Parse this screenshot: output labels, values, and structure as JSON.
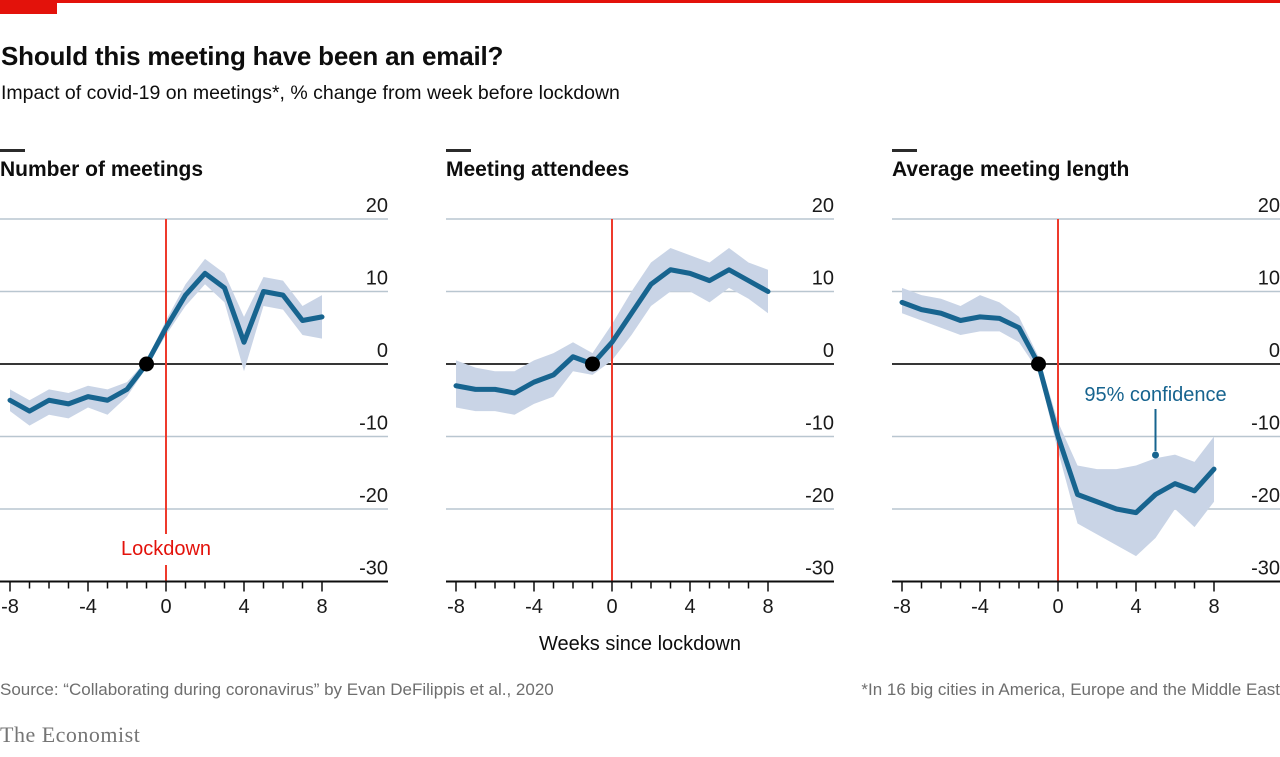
{
  "header": {
    "title": "Should this meeting have been an email?",
    "subtitle": "Impact of covid-19 on meetings*, % change from week before lockdown"
  },
  "axis": {
    "x_label": "Weeks since lockdown"
  },
  "footer": {
    "source": "Source: “Collaborating during coronavirus” by Evan DeFilippis et al., 2020",
    "footnote": "*In 16 big cities in America, Europe and the Middle East",
    "brand": "The Economist"
  },
  "colors": {
    "red": "#e3120b",
    "red_line": "#ee3a2c",
    "line_blue": "#17648f",
    "band_blue": "#c9d4e6",
    "gridline": "#b9c6d0",
    "zero_line": "#1a1a1a",
    "axis_black": "#0d0d0d",
    "dot_black": "#000000"
  },
  "chart_data": [
    {
      "type": "line",
      "title": "Number of meetings",
      "x": [
        -8,
        -7,
        -6,
        -5,
        -4,
        -3,
        -2,
        -1,
        0,
        1,
        2,
        3,
        4,
        5,
        6,
        7,
        8
      ],
      "series": [
        {
          "name": "% change",
          "values": [
            -5,
            -6.5,
            -5,
            -5.5,
            -4.5,
            -5,
            -3.5,
            0,
            5,
            9.5,
            12.5,
            10.5,
            3,
            10,
            9.5,
            6,
            6.5
          ]
        },
        {
          "name": "95% CI upper",
          "values": [
            -3.5,
            -5,
            -3.5,
            -4,
            -3,
            -3.5,
            -2.5,
            0.5,
            6,
            11,
            14.5,
            12.5,
            6.5,
            12,
            11.5,
            8,
            9.5
          ]
        },
        {
          "name": "95% CI lower",
          "values": [
            -6.5,
            -8.5,
            -7,
            -7.5,
            -6,
            -7,
            -4.5,
            -0.5,
            4,
            8,
            11,
            8.5,
            -1,
            8,
            7.5,
            4,
            3.5
          ]
        }
      ],
      "ylim": [
        -30,
        20
      ],
      "yticks": [
        20,
        10,
        0,
        -10,
        -20,
        -30
      ],
      "xticks_labeled": [
        -8,
        -4,
        0,
        4,
        8
      ],
      "grid": true,
      "reference_point": {
        "week": -1,
        "value": 0
      },
      "vline": {
        "week": 0,
        "label": "Lockdown"
      },
      "annotation": null
    },
    {
      "type": "line",
      "title": "Meeting attendees",
      "x": [
        -8,
        -7,
        -6,
        -5,
        -4,
        -3,
        -2,
        -1,
        0,
        1,
        2,
        3,
        4,
        5,
        6,
        7,
        8
      ],
      "series": [
        {
          "name": "% change",
          "values": [
            -3,
            -3.5,
            -3.5,
            -4,
            -2.5,
            -1.5,
            1,
            0,
            3,
            7,
            11,
            13,
            12.5,
            11.5,
            13,
            11.5,
            10
          ]
        },
        {
          "name": "95% CI upper",
          "values": [
            0.5,
            -0.5,
            -1,
            -1,
            0.5,
            1.5,
            3,
            1.5,
            5.5,
            10,
            14,
            16,
            15,
            14,
            16,
            14,
            13
          ]
        },
        {
          "name": "95% CI lower",
          "values": [
            -6,
            -6.5,
            -6.5,
            -7,
            -5.5,
            -4.5,
            -1,
            -1.5,
            0.5,
            4,
            8,
            10,
            10,
            8.5,
            10.5,
            9,
            7
          ]
        }
      ],
      "ylim": [
        -30,
        20
      ],
      "yticks": [
        20,
        10,
        0,
        -10,
        -20,
        -30
      ],
      "xticks_labeled": [
        -8,
        -4,
        0,
        4,
        8
      ],
      "grid": true,
      "reference_point": {
        "week": -1,
        "value": 0
      },
      "vline": {
        "week": 0,
        "label": null
      },
      "annotation": null
    },
    {
      "type": "line",
      "title": "Average meeting length",
      "x": [
        -8,
        -7,
        -6,
        -5,
        -4,
        -3,
        -2,
        -1,
        0,
        1,
        2,
        3,
        4,
        5,
        6,
        7,
        8
      ],
      "series": [
        {
          "name": "% change",
          "values": [
            8.5,
            7.5,
            7,
            6,
            6.5,
            6.3,
            5,
            0,
            -10,
            -18,
            -19,
            -20,
            -20.5,
            -18,
            -16.5,
            -17.5,
            -14.5
          ]
        },
        {
          "name": "95% CI upper",
          "values": [
            10.5,
            9.5,
            9,
            8,
            9.5,
            8.5,
            6.5,
            1,
            -8,
            -14,
            -14.5,
            -14.5,
            -14,
            -13,
            -12.5,
            -13.5,
            -10
          ]
        },
        {
          "name": "95% CI lower",
          "values": [
            7,
            6,
            5,
            4,
            4.5,
            4.5,
            3,
            -1,
            -12,
            -22,
            -23.5,
            -25,
            -26.5,
            -24,
            -20,
            -22.5,
            -19
          ]
        }
      ],
      "ylim": [
        -30,
        20
      ],
      "yticks": [
        20,
        10,
        0,
        -10,
        -20,
        -30
      ],
      "xticks_labeled": [
        -8,
        -4,
        0,
        4,
        8
      ],
      "grid": true,
      "reference_point": {
        "week": -1,
        "value": 0
      },
      "vline": {
        "week": 0,
        "label": null
      },
      "annotation": {
        "text": "95% confidence",
        "week": 5
      }
    }
  ]
}
